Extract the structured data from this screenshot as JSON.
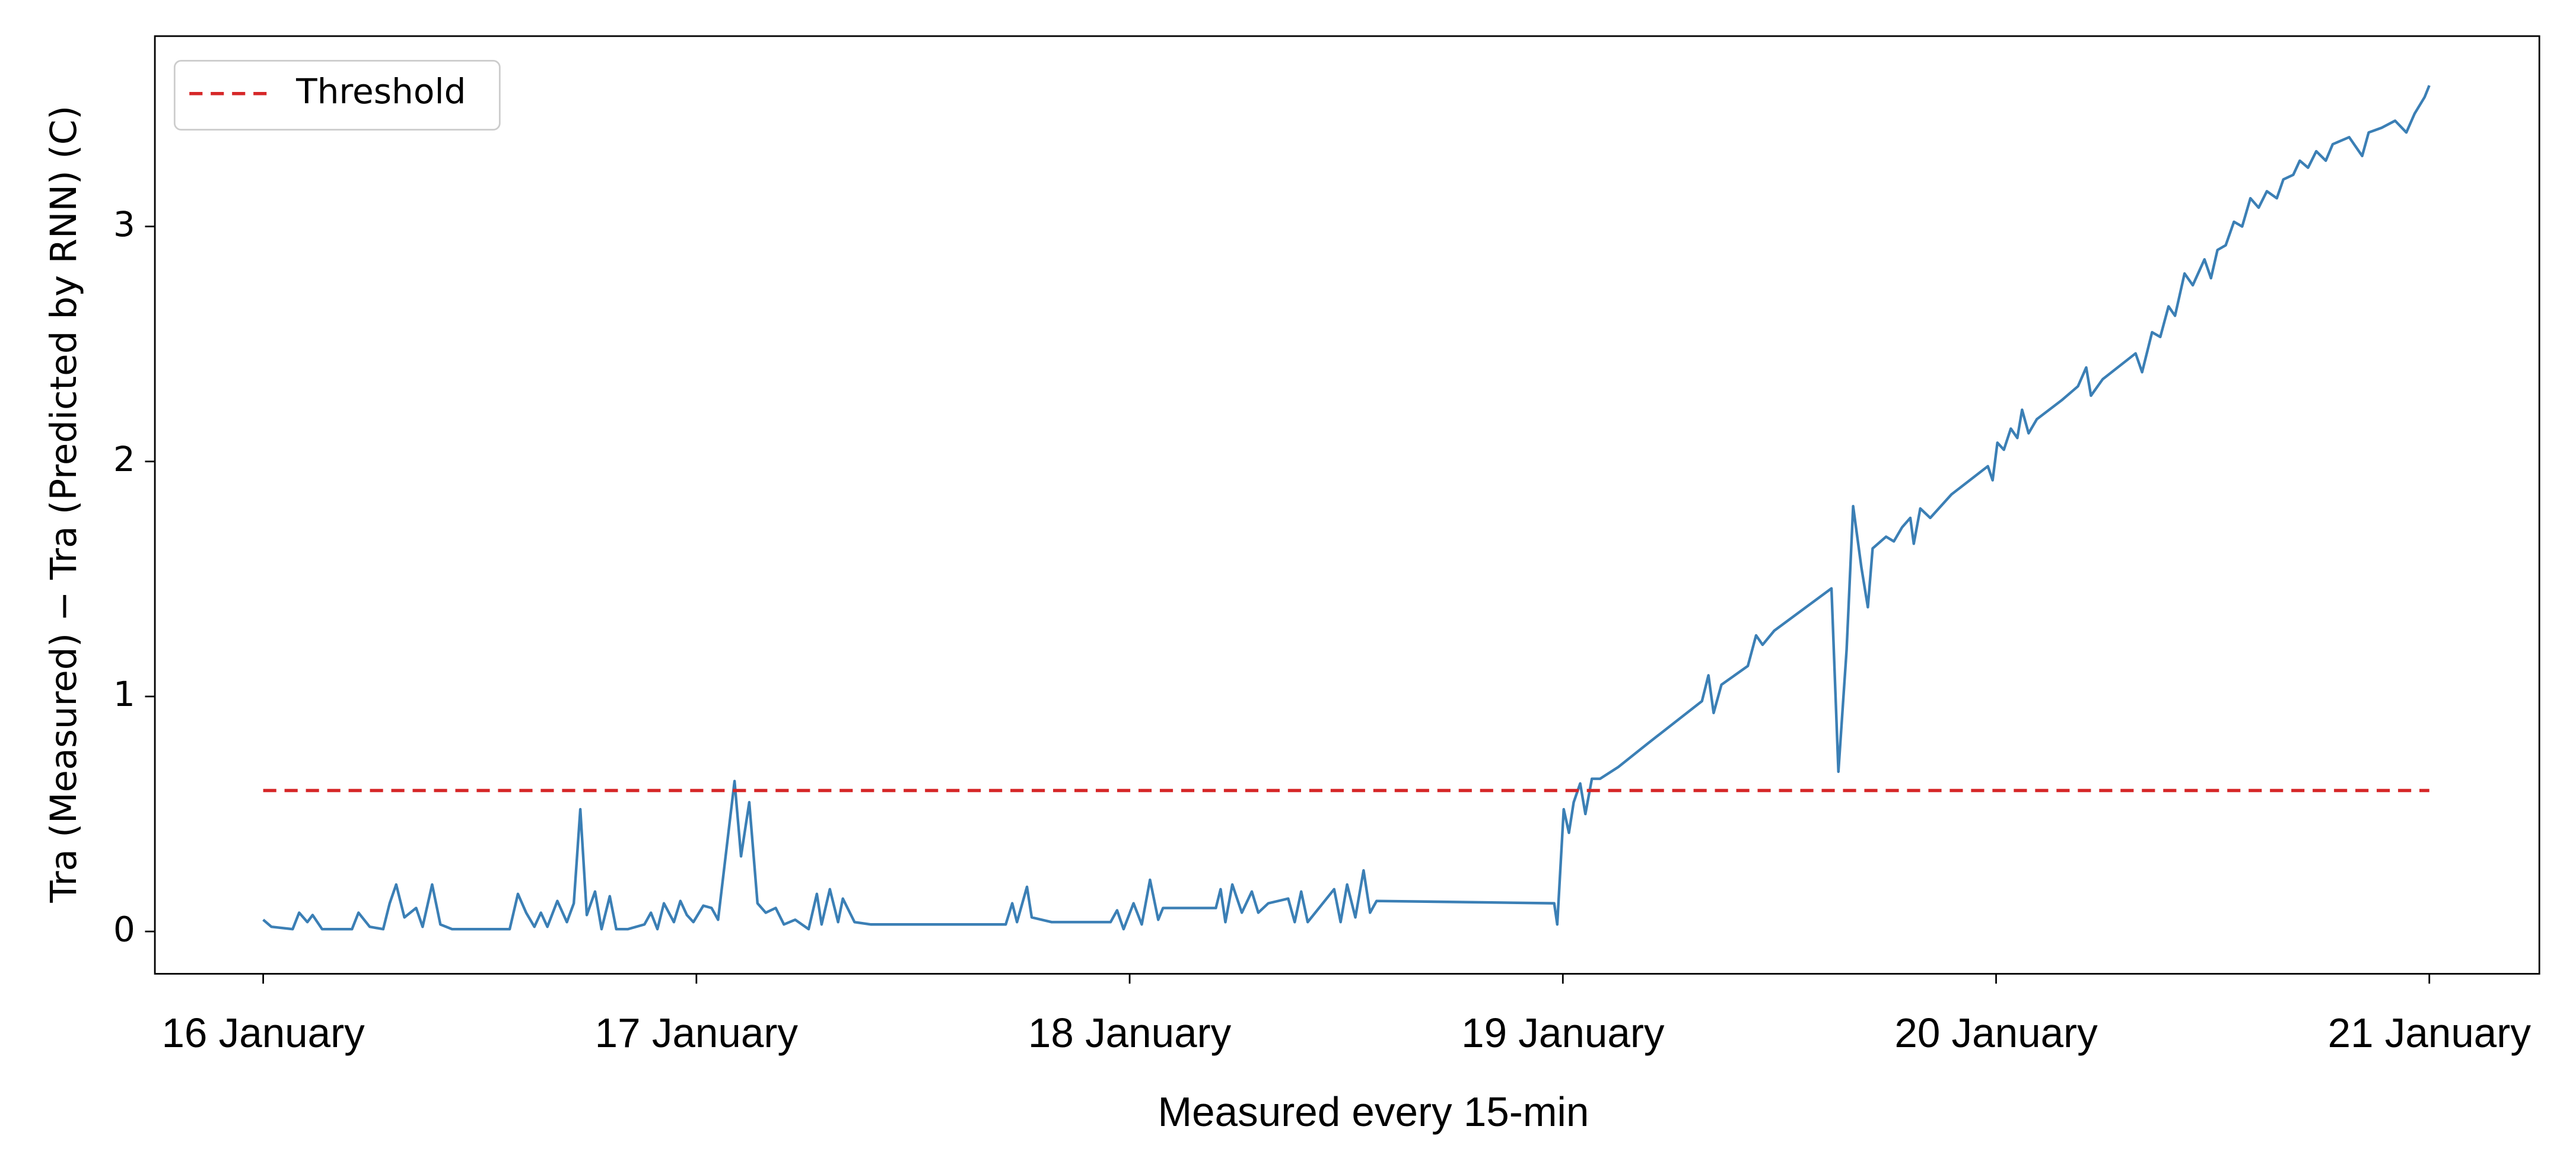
{
  "chart_data": {
    "type": "line",
    "xlabel": "Measured every 15-min",
    "ylabel": "Tra (Measured) − Tra (Predicted by RNN) (C)",
    "xlim": [
      15.75,
      21.254
    ],
    "ylim": [
      -0.18,
      3.81
    ],
    "xticks": [
      {
        "value": 16,
        "label": "16 January"
      },
      {
        "value": 17,
        "label": "17 January"
      },
      {
        "value": 18,
        "label": "18 January"
      },
      {
        "value": 19,
        "label": "19 January"
      },
      {
        "value": 20,
        "label": "20 January"
      },
      {
        "value": 21,
        "label": "21 January"
      }
    ],
    "yticks": [
      0,
      1,
      2,
      3
    ],
    "grid": false,
    "legend": "upper left",
    "series": [
      {
        "color": "#3b7fb5",
        "x": [
          16.0,
          16.019,
          16.068,
          16.083,
          16.102,
          16.114,
          16.136,
          16.205,
          16.22,
          16.246,
          16.277,
          16.292,
          16.307,
          16.326,
          16.353,
          16.368,
          16.39,
          16.409,
          16.436,
          16.569,
          16.588,
          16.607,
          16.626,
          16.641,
          16.656,
          16.679,
          16.701,
          16.717,
          16.732,
          16.747,
          16.766,
          16.781,
          16.8,
          16.815,
          16.842,
          16.88,
          16.895,
          16.91,
          16.925,
          16.948,
          16.963,
          16.978,
          16.993,
          17.016,
          17.035,
          17.05,
          17.088,
          17.103,
          17.122,
          17.141,
          17.16,
          17.183,
          17.202,
          17.228,
          17.259,
          17.278,
          17.289,
          17.308,
          17.327,
          17.338,
          17.365,
          17.403,
          17.714,
          17.729,
          17.74,
          17.763,
          17.774,
          17.82,
          17.956,
          17.971,
          17.986,
          18.009,
          18.028,
          18.047,
          18.066,
          18.077,
          18.199,
          18.21,
          18.221,
          18.237,
          18.259,
          18.282,
          18.297,
          18.32,
          18.366,
          18.381,
          18.396,
          18.411,
          18.472,
          18.487,
          18.502,
          18.521,
          18.54,
          18.555,
          18.57,
          18.98,
          18.987,
          19.002,
          19.014,
          19.025,
          19.04,
          19.052,
          19.067,
          19.086,
          19.128,
          19.196,
          19.321,
          19.336,
          19.348,
          19.366,
          19.427,
          19.446,
          19.461,
          19.488,
          19.62,
          19.636,
          19.655,
          19.67,
          19.689,
          19.704,
          19.715,
          19.746,
          19.764,
          19.783,
          19.802,
          19.81,
          19.825,
          19.848,
          19.897,
          19.981,
          19.992,
          20.003,
          20.018,
          20.034,
          20.049,
          20.06,
          20.075,
          20.094,
          20.151,
          20.189,
          20.208,
          20.219,
          20.246,
          20.322,
          20.337,
          20.36,
          20.379,
          20.398,
          20.413,
          20.435,
          20.454,
          20.481,
          20.496,
          20.511,
          20.53,
          20.549,
          20.568,
          20.587,
          20.606,
          20.625,
          20.648,
          20.663,
          20.686,
          20.701,
          20.72,
          20.739,
          20.761,
          20.777,
          20.815,
          20.845,
          20.86,
          20.89,
          20.921,
          20.947,
          20.966,
          20.989,
          21.0
        ],
        "values": [
          0.05,
          0.02,
          0.01,
          0.08,
          0.04,
          0.07,
          0.01,
          0.01,
          0.08,
          0.02,
          0.01,
          0.12,
          0.2,
          0.06,
          0.1,
          0.02,
          0.2,
          0.03,
          0.01,
          0.01,
          0.16,
          0.08,
          0.02,
          0.08,
          0.02,
          0.13,
          0.04,
          0.12,
          0.52,
          0.07,
          0.17,
          0.01,
          0.15,
          0.01,
          0.01,
          0.03,
          0.08,
          0.01,
          0.12,
          0.04,
          0.13,
          0.07,
          0.04,
          0.11,
          0.1,
          0.05,
          0.64,
          0.32,
          0.55,
          0.12,
          0.08,
          0.1,
          0.03,
          0.05,
          0.01,
          0.16,
          0.03,
          0.18,
          0.04,
          0.14,
          0.04,
          0.03,
          0.03,
          0.12,
          0.04,
          0.19,
          0.06,
          0.04,
          0.04,
          0.09,
          0.01,
          0.12,
          0.03,
          0.22,
          0.05,
          0.1,
          0.1,
          0.18,
          0.04,
          0.2,
          0.08,
          0.17,
          0.08,
          0.12,
          0.14,
          0.04,
          0.17,
          0.04,
          0.18,
          0.04,
          0.2,
          0.06,
          0.26,
          0.08,
          0.13,
          0.12,
          0.03,
          0.52,
          0.42,
          0.55,
          0.63,
          0.5,
          0.65,
          0.65,
          0.7,
          0.8,
          0.98,
          1.09,
          0.93,
          1.05,
          1.13,
          1.26,
          1.22,
          1.28,
          1.46,
          0.68,
          1.2,
          1.81,
          1.55,
          1.38,
          1.63,
          1.68,
          1.66,
          1.72,
          1.76,
          1.65,
          1.8,
          1.76,
          1.86,
          1.98,
          1.92,
          2.08,
          2.05,
          2.14,
          2.1,
          2.22,
          2.12,
          2.18,
          2.26,
          2.32,
          2.4,
          2.28,
          2.35,
          2.46,
          2.38,
          2.55,
          2.53,
          2.66,
          2.62,
          2.8,
          2.75,
          2.86,
          2.78,
          2.9,
          2.92,
          3.02,
          3.0,
          3.12,
          3.08,
          3.15,
          3.12,
          3.2,
          3.22,
          3.28,
          3.25,
          3.32,
          3.28,
          3.35,
          3.38,
          3.3,
          3.4,
          3.42,
          3.45,
          3.4,
          3.48,
          3.55,
          3.6
        ]
      },
      {
        "name": "Threshold",
        "color": "#d62728",
        "dashed": true,
        "x": [
          16,
          21
        ],
        "values": [
          0.6,
          0.6
        ]
      }
    ]
  }
}
